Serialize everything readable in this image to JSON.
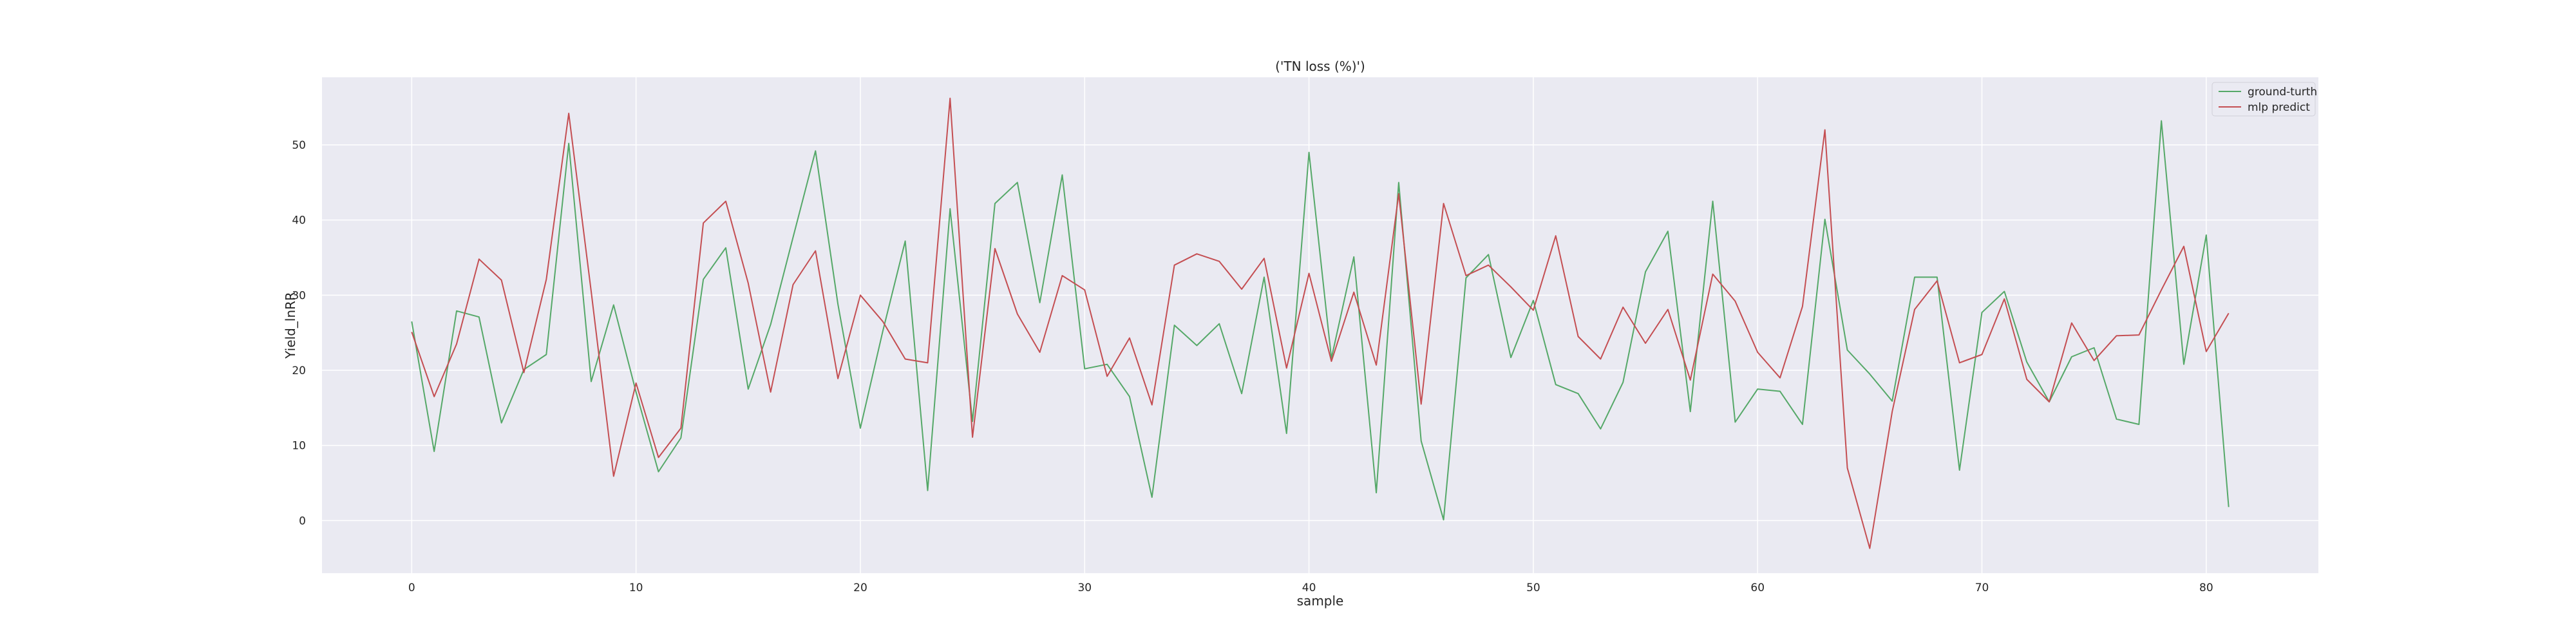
{
  "chart_data": {
    "type": "line",
    "title": "('TN loss (%)')",
    "xlabel": "sample",
    "ylabel": "Yield_lnRR",
    "xlim": [
      -4,
      85
    ],
    "ylim": [
      -7,
      59
    ],
    "xticks": [
      0,
      10,
      20,
      30,
      40,
      50,
      60,
      70,
      80
    ],
    "yticks": [
      0,
      10,
      20,
      30,
      40,
      50
    ],
    "grid": true,
    "legend_position": "top-right",
    "series": [
      {
        "name": "ground-turth",
        "color": "#55a868",
        "x": [
          0,
          1,
          2,
          3,
          4,
          5,
          6,
          7,
          8,
          9,
          10,
          11,
          12,
          13,
          14,
          15,
          16,
          17,
          18,
          19,
          20,
          21,
          22,
          23,
          24,
          25,
          26,
          27,
          28,
          29,
          30,
          31,
          32,
          33,
          34,
          35,
          36,
          37,
          38,
          39,
          40,
          41,
          42,
          43,
          44,
          45,
          46,
          47,
          48,
          49,
          50,
          51,
          52,
          53,
          54,
          55,
          56,
          57,
          58,
          59,
          60,
          61,
          62,
          63,
          64,
          65,
          66,
          67,
          68,
          69,
          70,
          71,
          72,
          73,
          74,
          75,
          76,
          77,
          78,
          79,
          80,
          81
        ],
        "values": [
          26.5,
          9.2,
          27.9,
          27.1,
          13,
          20.1,
          22.1,
          50.2,
          18.5,
          28.7,
          17.1,
          6.5,
          11,
          32.1,
          36.3,
          17.5,
          26.1,
          37.7,
          49.2,
          28.8,
          12.3,
          25.2,
          37.2,
          4,
          41.5,
          13.2,
          42.2,
          45,
          29,
          46,
          20.2,
          20.8,
          16.5,
          3.1,
          26,
          23.3,
          26.2,
          16.9,
          32.4,
          11.6,
          49,
          21.6,
          35.1,
          3.7,
          45,
          10.6,
          0.1,
          32.3,
          35.4,
          21.7,
          29.3,
          18.1,
          16.9,
          12.2,
          18.4,
          33.1,
          38.5,
          14.5,
          42.5,
          13.1,
          17.5,
          17.2,
          12.8,
          40.1,
          22.7,
          19.5,
          15.9,
          32.4,
          32.4,
          6.7,
          27.7,
          30.5,
          21.1,
          15.8,
          21.8,
          23,
          13.5,
          12.8,
          53.2,
          20.8,
          38,
          1.8
        ]
      },
      {
        "name": "mlp predict",
        "color": "#c44e52",
        "x": [
          0,
          1,
          2,
          3,
          4,
          5,
          6,
          7,
          8,
          9,
          10,
          11,
          12,
          13,
          14,
          15,
          16,
          17,
          18,
          19,
          20,
          21,
          22,
          23,
          24,
          25,
          26,
          27,
          28,
          29,
          30,
          31,
          32,
          33,
          34,
          35,
          36,
          37,
          38,
          39,
          40,
          41,
          42,
          43,
          44,
          45,
          46,
          47,
          48,
          49,
          50,
          51,
          52,
          53,
          54,
          55,
          56,
          57,
          58,
          59,
          60,
          61,
          62,
          63,
          64,
          65,
          66,
          67,
          68,
          69,
          70,
          71,
          72,
          73,
          74,
          75,
          76,
          77,
          78,
          79,
          80,
          81
        ],
        "values": [
          25.1,
          16.5,
          23.5,
          34.8,
          32,
          19.7,
          32.1,
          54.2,
          30.5,
          5.9,
          18.3,
          8.4,
          12.3,
          39.6,
          42.5,
          31.6,
          17.1,
          31.4,
          35.9,
          18.9,
          30,
          26.5,
          21.5,
          21,
          56.2,
          11.1,
          36.2,
          27.5,
          22.4,
          32.6,
          30.7,
          19.2,
          24.3,
          15.4,
          34,
          35.5,
          34.5,
          30.8,
          34.9,
          20.3,
          32.9,
          21.2,
          30.4,
          20.7,
          43.5,
          15.5,
          42.2,
          32.6,
          34,
          31.1,
          28,
          37.9,
          24.5,
          21.5,
          28.4,
          23.6,
          28.1,
          18.7,
          32.8,
          29.2,
          22.4,
          19,
          28.5,
          52,
          7,
          -3.7,
          14.5,
          28.1,
          31.9,
          21,
          22.1,
          29.5,
          18.8,
          15.8,
          26.3,
          21.3,
          24.6,
          24.7,
          30.7,
          36.5,
          22.5,
          27.6
        ]
      }
    ]
  }
}
